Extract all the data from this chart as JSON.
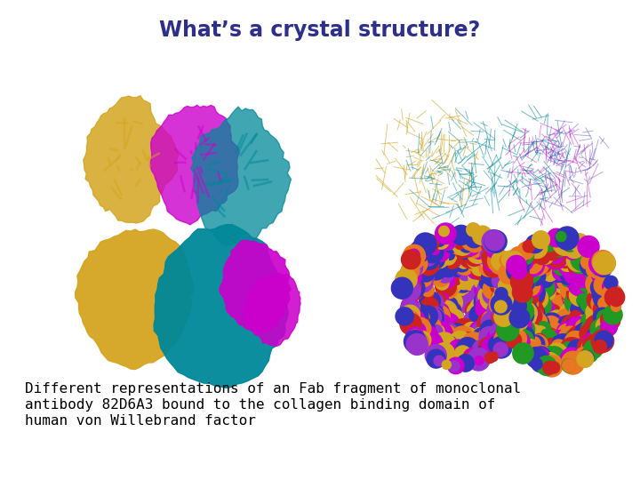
{
  "title": "What’s a crystal structure?",
  "title_color": "#2E2E8B",
  "title_fontsize": 17,
  "caption_line1": "Different representations of an Fab fragment of monoclonal",
  "caption_line2": "antibody 82D6A3 bound to the collagen binding domain of",
  "caption_line3": "human von Willebrand factor",
  "caption_fontsize": 11.5,
  "caption_color": "#000000",
  "background_color": "#ffffff",
  "figsize": [
    7.2,
    5.4
  ],
  "dpi": 100,
  "colors": {
    "gold": "#D4A520",
    "magenta": "#CC00CC",
    "teal": "#008899",
    "orange": "#E87722",
    "blue": "#3333BB",
    "red": "#CC2222",
    "purple": "#9933CC",
    "green": "#229922"
  }
}
